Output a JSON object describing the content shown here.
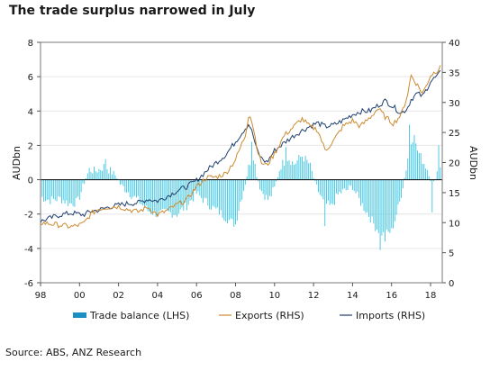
{
  "title": "The trade surplus narrowed in July",
  "source": "Source: ABS, ANZ Research",
  "chart_data": {
    "type": "bar+line",
    "x_range": [
      1998,
      2018.6
    ],
    "x_ticks": [
      1998,
      2000,
      2002,
      2004,
      2006,
      2008,
      2010,
      2012,
      2014,
      2016,
      2018
    ],
    "x_tick_labels": [
      "98",
      "00",
      "02",
      "04",
      "06",
      "08",
      "10",
      "12",
      "14",
      "16",
      "18"
    ],
    "left_axis": {
      "label": "AUDbn",
      "ylim": [
        -6,
        8
      ],
      "ticks": [
        -6,
        -4,
        -2,
        0,
        2,
        4,
        6,
        8
      ]
    },
    "right_axis": {
      "label": "AUDbn",
      "ylim": [
        0,
        40
      ],
      "ticks": [
        0,
        5,
        10,
        15,
        20,
        25,
        30,
        35,
        40
      ]
    },
    "legend_position": "bottom",
    "colors": {
      "balance": "#3cc5e2",
      "exports": "#cc8a2e",
      "imports": "#1f3f6e",
      "legend_balance": "#1a8fc2"
    },
    "series": [
      {
        "name": "Trade balance (LHS)",
        "kind": "bar",
        "axis": "left",
        "anchors": [
          [
            1998,
            -1.0
          ],
          [
            1998.5,
            -1.2
          ],
          [
            1999,
            -1.1
          ],
          [
            1999.5,
            -1.4
          ],
          [
            1999.9,
            -1.3
          ],
          [
            2000.2,
            -0.3
          ],
          [
            2000.5,
            0.6
          ],
          [
            2000.8,
            0.5
          ],
          [
            2001,
            0.6
          ],
          [
            2001.3,
            0.8
          ],
          [
            2001.6,
            0.5
          ],
          [
            2001.9,
            0.2
          ],
          [
            2002.1,
            -0.3
          ],
          [
            2002.5,
            -0.7
          ],
          [
            2003,
            -1.2
          ],
          [
            2003.5,
            -1.8
          ],
          [
            2004,
            -2.0
          ],
          [
            2004.5,
            -1.9
          ],
          [
            2005,
            -2.0
          ],
          [
            2005.5,
            -1.5
          ],
          [
            2006,
            -0.8
          ],
          [
            2006.4,
            -1.2
          ],
          [
            2006.8,
            -1.6
          ],
          [
            2007.3,
            -2.0
          ],
          [
            2007.7,
            -2.4
          ],
          [
            2008,
            -2.6
          ],
          [
            2008.2,
            -1.5
          ],
          [
            2008.5,
            -0.2
          ],
          [
            2008.7,
            0.9
          ],
          [
            2008.9,
            1.5
          ],
          [
            2009.1,
            0.2
          ],
          [
            2009.3,
            -0.6
          ],
          [
            2009.7,
            -1.2
          ],
          [
            2010,
            -0.5
          ],
          [
            2010.3,
            0.8
          ],
          [
            2010.7,
            1.3
          ],
          [
            2011,
            0.9
          ],
          [
            2011.4,
            1.4
          ],
          [
            2011.8,
            0.9
          ],
          [
            2012.1,
            -0.3
          ],
          [
            2012.5,
            -1.3
          ],
          [
            2012.9,
            -1.6
          ],
          [
            2013.3,
            -0.8
          ],
          [
            2013.7,
            -0.6
          ],
          [
            2014,
            -0.4
          ],
          [
            2014.4,
            -1.3
          ],
          [
            2014.8,
            -2.0
          ],
          [
            2015.2,
            -2.8
          ],
          [
            2015.6,
            -3.2
          ],
          [
            2016,
            -3.0
          ],
          [
            2016.4,
            -1.4
          ],
          [
            2016.7,
            0.3
          ],
          [
            2016.9,
            1.8
          ],
          [
            2017.1,
            2.5
          ],
          [
            2017.3,
            1.8
          ],
          [
            2017.6,
            1.1
          ],
          [
            2017.9,
            0.5
          ],
          [
            2018.1,
            -0.5
          ],
          [
            2018.3,
            0.4
          ],
          [
            2018.5,
            0.8
          ]
        ],
        "spikes": [
          [
            2001.3,
            1.2
          ],
          [
            2008.8,
            2.2
          ],
          [
            2010.6,
            1.9
          ],
          [
            2012.6,
            -2.7
          ],
          [
            2015.4,
            -4.1
          ],
          [
            2015.7,
            -3.6
          ],
          [
            2016.9,
            3.2
          ],
          [
            2017.2,
            2.6
          ],
          [
            2018.1,
            -1.9
          ],
          [
            2018.4,
            2.0
          ]
        ]
      },
      {
        "name": "Exports (RHS)",
        "kind": "line",
        "axis": "right",
        "anchors": [
          [
            1998,
            10
          ],
          [
            1999,
            9.6
          ],
          [
            1999.6,
            9.3
          ],
          [
            2000.2,
            9.8
          ],
          [
            2000.6,
            11.5
          ],
          [
            2001,
            12.3
          ],
          [
            2001.5,
            12.6
          ],
          [
            2002,
            12.7
          ],
          [
            2002.5,
            12.2
          ],
          [
            2003,
            11.8
          ],
          [
            2003.5,
            12.6
          ],
          [
            2004,
            11.3
          ],
          [
            2004.5,
            12.0
          ],
          [
            2005,
            13.0
          ],
          [
            2005.5,
            13.8
          ],
          [
            2006,
            16.0
          ],
          [
            2006.5,
            17.5
          ],
          [
            2007,
            17.6
          ],
          [
            2007.5,
            18.2
          ],
          [
            2008,
            20.5
          ],
          [
            2008.5,
            24.5
          ],
          [
            2008.7,
            28.5
          ],
          [
            2008.9,
            26.0
          ],
          [
            2009.1,
            22.5
          ],
          [
            2009.3,
            20.0
          ],
          [
            2009.6,
            19.5
          ],
          [
            2010,
            21.5
          ],
          [
            2010.5,
            24.5
          ],
          [
            2011,
            26.0
          ],
          [
            2011.4,
            27.3
          ],
          [
            2011.8,
            26.0
          ],
          [
            2012.2,
            25.5
          ],
          [
            2012.6,
            22.0
          ],
          [
            2013,
            23.5
          ],
          [
            2013.5,
            26.0
          ],
          [
            2014,
            27.0
          ],
          [
            2014.4,
            26.0
          ],
          [
            2014.9,
            27.5
          ],
          [
            2015.3,
            29.0
          ],
          [
            2015.7,
            27.5
          ],
          [
            2016.1,
            26.5
          ],
          [
            2016.5,
            28.0
          ],
          [
            2016.8,
            31.0
          ],
          [
            2017,
            34.5
          ],
          [
            2017.3,
            33.0
          ],
          [
            2017.6,
            31.5
          ],
          [
            2018,
            34.5
          ],
          [
            2018.4,
            35.5
          ],
          [
            2018.55,
            36.8
          ]
        ]
      },
      {
        "name": "Imports (RHS)",
        "kind": "line",
        "axis": "right",
        "anchors": [
          [
            1998,
            10.2
          ],
          [
            1999,
            11.3
          ],
          [
            1999.6,
            11.6
          ],
          [
            2000.2,
            11.3
          ],
          [
            2000.6,
            11.9
          ],
          [
            2001,
            12.1
          ],
          [
            2001.5,
            12.6
          ],
          [
            2002,
            12.9
          ],
          [
            2002.5,
            13.2
          ],
          [
            2003,
            13.3
          ],
          [
            2003.5,
            13.9
          ],
          [
            2004,
            13.6
          ],
          [
            2004.5,
            14.4
          ],
          [
            2005,
            15.3
          ],
          [
            2005.5,
            16.0
          ],
          [
            2006,
            17.0
          ],
          [
            2006.5,
            18.6
          ],
          [
            2007,
            20.0
          ],
          [
            2007.5,
            21.3
          ],
          [
            2008,
            23.5
          ],
          [
            2008.5,
            25.7
          ],
          [
            2008.7,
            26.5
          ],
          [
            2008.9,
            24.5
          ],
          [
            2009.1,
            22.0
          ],
          [
            2009.3,
            20.8
          ],
          [
            2009.6,
            20.0
          ],
          [
            2010,
            22.0
          ],
          [
            2010.5,
            23.3
          ],
          [
            2011,
            24.5
          ],
          [
            2011.4,
            25.3
          ],
          [
            2011.8,
            26.0
          ],
          [
            2012.2,
            26.6
          ],
          [
            2012.6,
            26.0
          ],
          [
            2013,
            26.2
          ],
          [
            2013.5,
            27.0
          ],
          [
            2014,
            28.0
          ],
          [
            2014.4,
            28.5
          ],
          [
            2014.9,
            28.6
          ],
          [
            2015.3,
            29.5
          ],
          [
            2015.7,
            30.3
          ],
          [
            2016,
            29.5
          ],
          [
            2016.5,
            28.2
          ],
          [
            2016.8,
            29.0
          ],
          [
            2017,
            30.5
          ],
          [
            2017.3,
            31.5
          ],
          [
            2017.6,
            31.0
          ],
          [
            2018,
            33.5
          ],
          [
            2018.4,
            34.5
          ],
          [
            2018.55,
            35.2
          ]
        ]
      }
    ]
  }
}
